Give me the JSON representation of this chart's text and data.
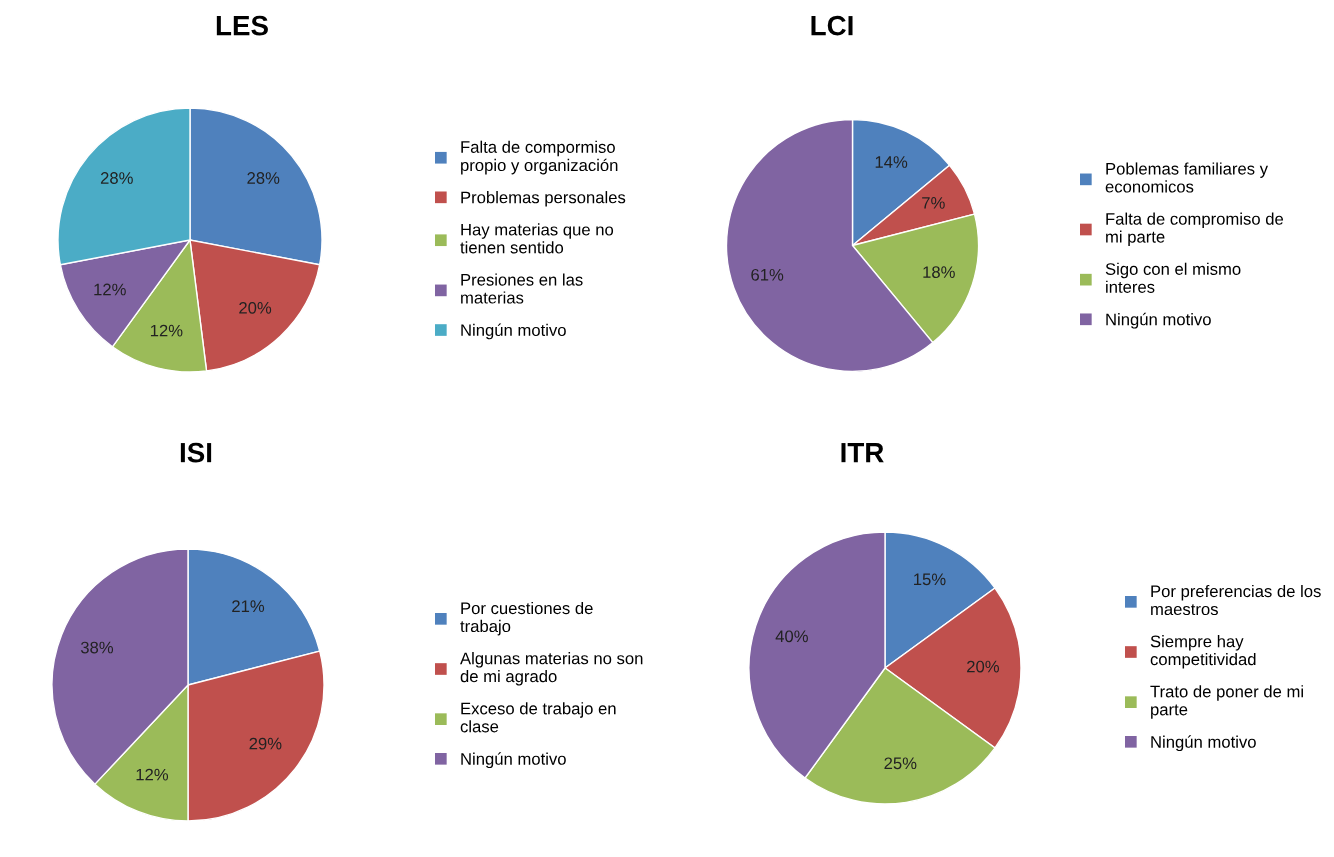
{
  "chart_data": [
    {
      "type": "pie",
      "title": "LES",
      "categories": [
        "Falta de compormiso propio y organización",
        "Problemas personales",
        "Hay materias que no tienen sentido",
        "Presiones en las materias",
        "Ningún motivo"
      ],
      "values": [
        28,
        20,
        12,
        12,
        28
      ],
      "colors": [
        "#4f81bd",
        "#c0504d",
        "#9bbb59",
        "#8064a2",
        "#4bacc6"
      ],
      "value_labels": [
        "28%",
        "20%",
        "12%",
        "12%",
        "28%"
      ],
      "legend": "right"
    },
    {
      "type": "pie",
      "title": "LCI",
      "categories": [
        "Poblemas familiares y economicos",
        "Falta de compromiso de mi parte",
        "Sigo con el mismo interes",
        "Ningún motivo"
      ],
      "values": [
        14,
        7,
        18,
        61
      ],
      "colors": [
        "#4f81bd",
        "#c0504d",
        "#9bbb59",
        "#8064a2"
      ],
      "value_labels": [
        "14%",
        "7%",
        "18%",
        "61%"
      ],
      "legend": "right"
    },
    {
      "type": "pie",
      "title": "ISI",
      "categories": [
        "Por cuestiones de trabajo",
        "Algunas materias no son de mi agrado",
        "Exceso de trabajo en clase",
        "Ningún motivo"
      ],
      "values": [
        21,
        29,
        12,
        38
      ],
      "colors": [
        "#4f81bd",
        "#c0504d",
        "#9bbb59",
        "#8064a2"
      ],
      "value_labels": [
        "21%",
        "29%",
        "12%",
        "38%"
      ],
      "legend": "right"
    },
    {
      "type": "pie",
      "title": "ITR",
      "categories": [
        "Por preferencias de los maestros",
        "Siempre hay competitividad",
        "Trato de poner de mi parte",
        "Ningún motivo"
      ],
      "values": [
        15,
        20,
        25,
        40
      ],
      "colors": [
        "#4f81bd",
        "#c0504d",
        "#9bbb59",
        "#8064a2"
      ],
      "value_labels": [
        "15%",
        "20%",
        "25%",
        "40%"
      ],
      "legend": "right"
    }
  ]
}
